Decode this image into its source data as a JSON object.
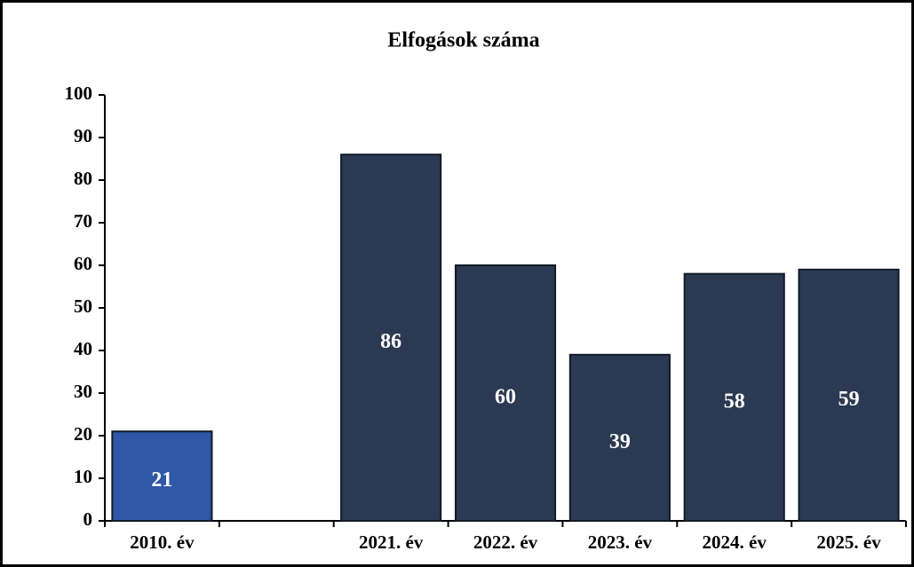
{
  "chart_data": {
    "type": "bar",
    "title": "Elfogások száma",
    "categories": [
      "2010. év",
      null,
      "2021. év",
      "2022. év",
      "2023. év",
      "2024. év",
      "2025. év"
    ],
    "values": [
      21,
      null,
      86,
      60,
      39,
      58,
      59
    ],
    "colors": [
      "#2f57a6",
      null,
      "#2b3a52",
      "#2b3a52",
      "#2b3a52",
      "#2b3a52",
      "#2b3a52"
    ],
    "ylim": [
      0,
      100
    ],
    "yticks": [
      0,
      10,
      20,
      30,
      40,
      50,
      60,
      70,
      80,
      90,
      100
    ],
    "grid": false
  }
}
